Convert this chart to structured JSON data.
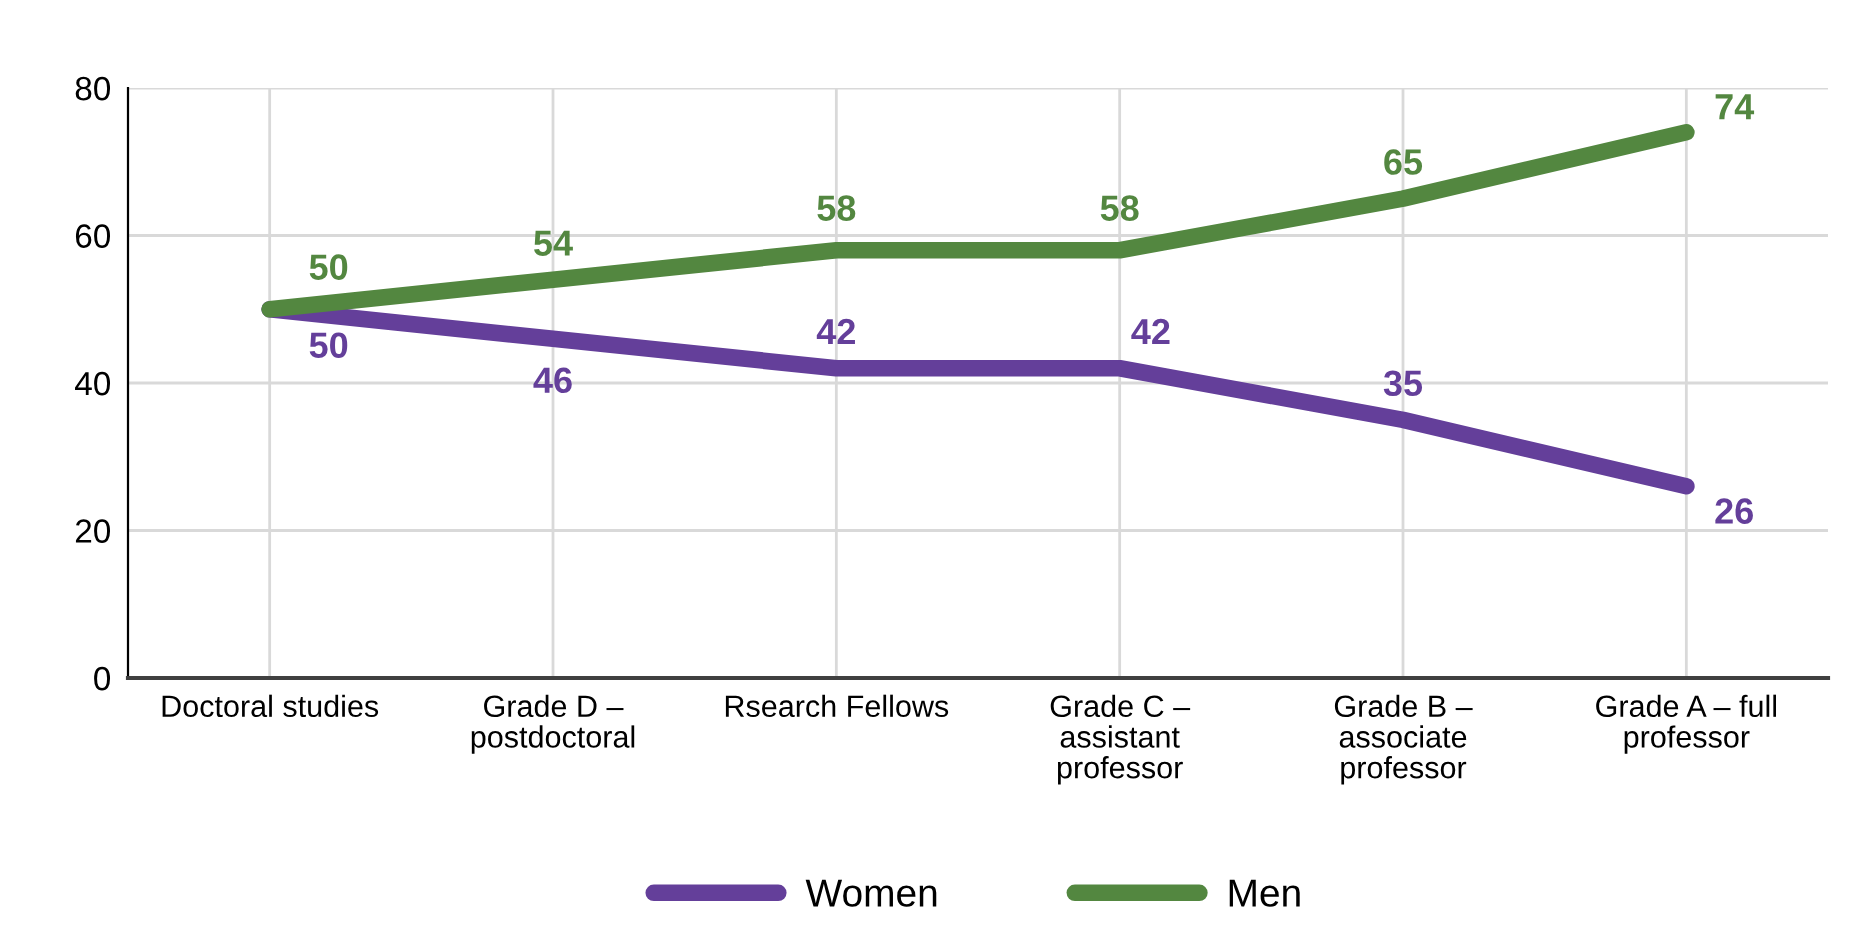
{
  "chart_data": {
    "type": "line",
    "categories": [
      "Doctoral studies",
      "Grade D –\npostdoctoral",
      "Rsearch Fellows",
      "Grade C –\nassistant\nprofessor",
      "Grade B –\nassociate\nprofessor",
      "Grade A – full\nprofessor"
    ],
    "series": [
      {
        "name": "Women",
        "color": "#643f9a",
        "values": [
          50,
          46,
          42,
          42,
          35,
          26
        ]
      },
      {
        "name": "Men",
        "color": "#538740",
        "values": [
          50,
          54,
          58,
          58,
          65,
          74
        ]
      }
    ],
    "ylim": [
      0,
      80
    ],
    "yticks": [
      0,
      20,
      40,
      60,
      80
    ],
    "grid": true,
    "legend": "bottom",
    "data_labels": true,
    "marker": "none",
    "line_style": "solid"
  }
}
